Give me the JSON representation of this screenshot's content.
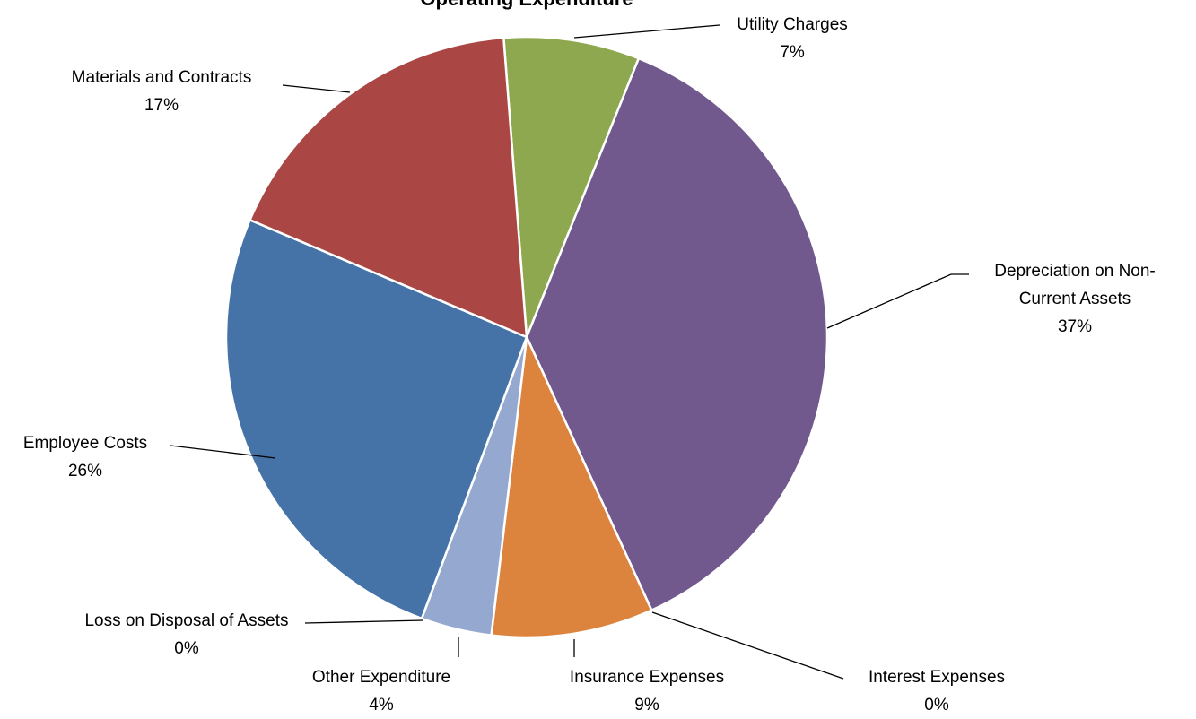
{
  "chart_data": {
    "type": "pie",
    "title": "Operating Expenditure",
    "categories": [
      "Utility Charges",
      "Depreciation on Non-Current Assets",
      "Interest Expenses",
      "Insurance Expenses",
      "Other Expenditure",
      "Loss on Disposal of Assets",
      "Employee Costs",
      "Materials and Contracts"
    ],
    "values": [
      7.3,
      37.1,
      0,
      8.7,
      3.8,
      0,
      25.7,
      17.4
    ],
    "value_labels": [
      "7%",
      "37%",
      "0%",
      "9%",
      "4%",
      "0%",
      "26%",
      "17%"
    ],
    "colors": [
      "#8ea84f",
      "#71598e",
      "#4bacc6",
      "#dc843d",
      "#95a9d0",
      "#c0504d",
      "#4572a7",
      "#aa4643"
    ]
  }
}
